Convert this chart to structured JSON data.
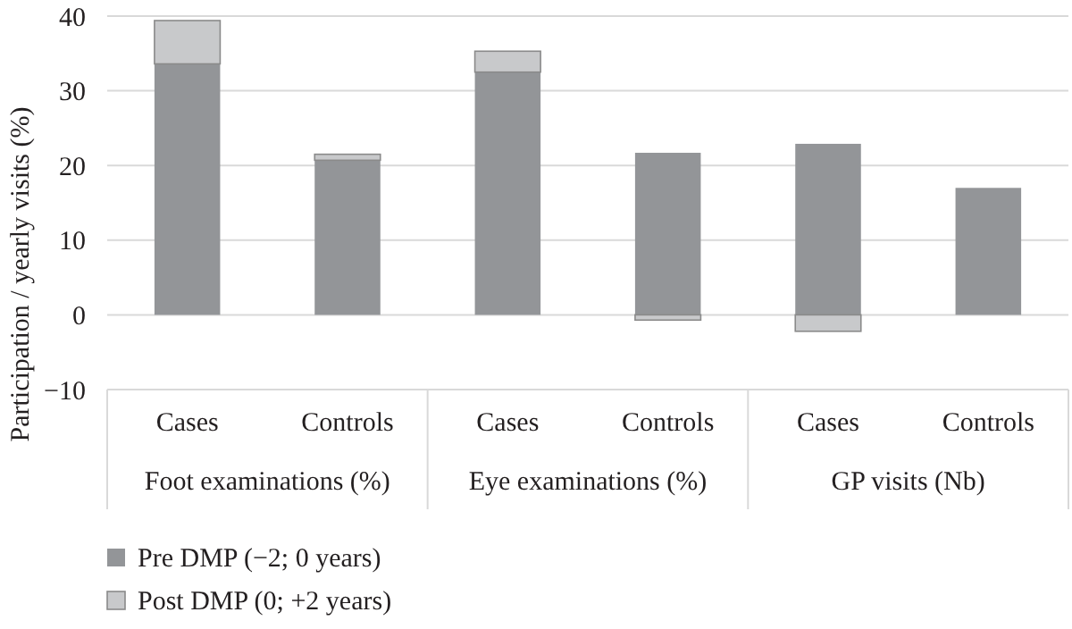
{
  "chart_data": {
    "type": "bar",
    "stacked": true,
    "ylabel": "Participation / yearly visits (%)",
    "categories": [
      "Cases",
      "Controls",
      "Cases",
      "Controls",
      "Cases",
      "Controls"
    ],
    "annotations": [
      "Foot examinations (%)",
      "Eye examinations (%)",
      "GP visits (Nb)"
    ],
    "series": [
      {
        "name": "Pre DMP (−2; 0 years)",
        "color": "#939598",
        "values": [
          33.6,
          20.7,
          32.5,
          21.7,
          22.9,
          17.0
        ]
      },
      {
        "name": "Post DMP (0; +2 years)",
        "color": "#c8c9cb",
        "values": [
          5.8,
          0.8,
          2.8,
          -0.7,
          -2.2,
          0
        ]
      }
    ],
    "ylim": [
      -10,
      40
    ],
    "yticks": [
      {
        "value": -10,
        "label": "−10"
      },
      0,
      10,
      20,
      30,
      40
    ],
    "grid": "y",
    "legend": "bottom"
  }
}
